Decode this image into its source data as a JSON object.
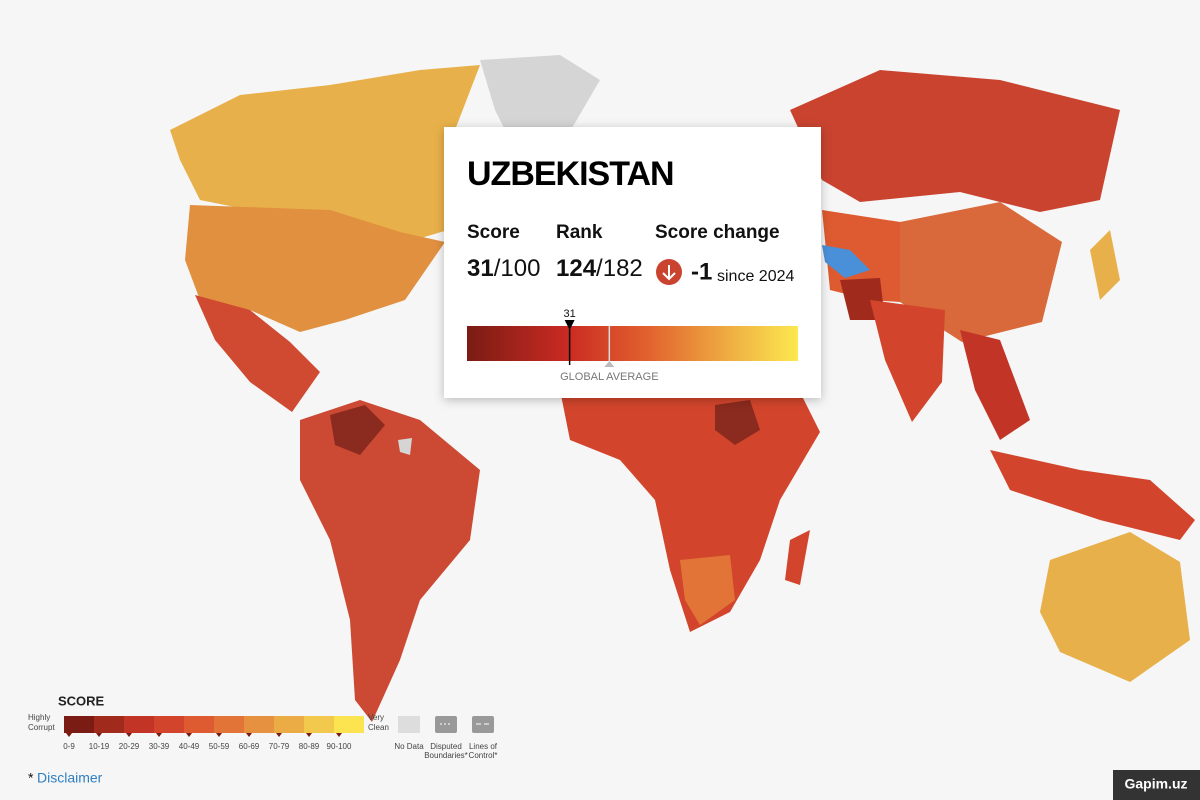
{
  "popup": {
    "country": "UZBEKISTAN",
    "score_label": "Score",
    "score": "31",
    "score_total": "/100",
    "rank_label": "Rank",
    "rank": "124",
    "rank_total": "/182",
    "change_label": "Score change",
    "change": "-1",
    "change_since": "since 2024",
    "gauge": {
      "xlim": [
        0,
        100
      ],
      "marker": 31,
      "global_average": 43,
      "global_average_label": "GLOBAL AVERAGE"
    }
  },
  "legend": {
    "title": "SCORE",
    "low_label": [
      "Highly",
      "Corrupt"
    ],
    "high_label": [
      "Very",
      "Clean"
    ],
    "bins": [
      {
        "label": "0-9",
        "color": "#7a1c14"
      },
      {
        "label": "10-19",
        "color": "#a02a1c"
      },
      {
        "label": "20-29",
        "color": "#c23426"
      },
      {
        "label": "30-39",
        "color": "#d2452c"
      },
      {
        "label": "40-49",
        "color": "#de5a30"
      },
      {
        "label": "50-59",
        "color": "#e27437"
      },
      {
        "label": "60-69",
        "color": "#e6913f"
      },
      {
        "label": "70-79",
        "color": "#ebac46"
      },
      {
        "label": "80-89",
        "color": "#f2c94c"
      },
      {
        "label": "90-100",
        "color": "#fbe44f"
      }
    ],
    "no_data": "No Data",
    "disputed": [
      "Disputed",
      "Boundaries*"
    ],
    "lines_of_control": [
      "Lines of",
      "Control*"
    ]
  },
  "footer": {
    "asterisk": "*",
    "disclaimer": "Disclaimer",
    "watermark": "Gapim.uz"
  }
}
